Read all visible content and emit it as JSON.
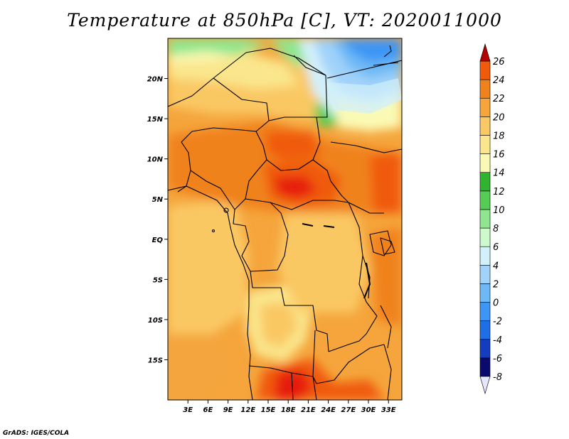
{
  "title": "Temperature at 850hPa [C], VT: 2020011000",
  "credit": "GrADS: IGES/COLA",
  "map": {
    "projection": "latlon",
    "lon_range": [
      0,
      35
    ],
    "lat_range": [
      -20,
      25
    ],
    "x_ticks": [
      {
        "lon": 3,
        "label": "3E"
      },
      {
        "lon": 6,
        "label": "6E"
      },
      {
        "lon": 9,
        "label": "9E"
      },
      {
        "lon": 12,
        "label": "12E"
      },
      {
        "lon": 15,
        "label": "15E"
      },
      {
        "lon": 18,
        "label": "18E"
      },
      {
        "lon": 21,
        "label": "21E"
      },
      {
        "lon": 24,
        "label": "24E"
      },
      {
        "lon": 27,
        "label": "27E"
      },
      {
        "lon": 30,
        "label": "30E"
      },
      {
        "lon": 33,
        "label": "33E"
      }
    ],
    "y_ticks": [
      {
        "lat": 20,
        "label": "20N"
      },
      {
        "lat": 15,
        "label": "15N"
      },
      {
        "lat": 10,
        "label": "10N"
      },
      {
        "lat": 5,
        "label": "5N"
      },
      {
        "lat": 0,
        "label": "EQ"
      },
      {
        "lat": -5,
        "label": "5S"
      },
      {
        "lat": -10,
        "label": "10S"
      },
      {
        "lat": -15,
        "label": "15S"
      }
    ]
  },
  "colorbar": {
    "unit": "C",
    "levels": [
      {
        "value": -8,
        "label": "-8"
      },
      {
        "value": -6,
        "label": "-6"
      },
      {
        "value": -4,
        "label": "-4"
      },
      {
        "value": -2,
        "label": "-2"
      },
      {
        "value": 0,
        "label": "0"
      },
      {
        "value": 2,
        "label": "2"
      },
      {
        "value": 4,
        "label": "4"
      },
      {
        "value": 6,
        "label": "6"
      },
      {
        "value": 8,
        "label": "8"
      },
      {
        "value": 10,
        "label": "10"
      },
      {
        "value": 12,
        "label": "12"
      },
      {
        "value": 14,
        "label": "14"
      },
      {
        "value": 16,
        "label": "16"
      },
      {
        "value": 18,
        "label": "18"
      },
      {
        "value": 20,
        "label": "20"
      },
      {
        "value": 22,
        "label": "22"
      },
      {
        "value": 24,
        "label": "24"
      },
      {
        "value": 26,
        "label": "26"
      }
    ],
    "colors": [
      "#e6e6ff",
      "#0a0a6e",
      "#143cbe",
      "#1e6ee6",
      "#3c96f5",
      "#6eb9f5",
      "#a0d2fa",
      "#d2f0fa",
      "#cdfacd",
      "#8fe68f",
      "#55cd55",
      "#30b430",
      "#fafab4",
      "#fae68c",
      "#fac864",
      "#f5a53c",
      "#f0821e",
      "#f05a0a",
      "#e61e0a",
      "#b40000"
    ]
  }
}
